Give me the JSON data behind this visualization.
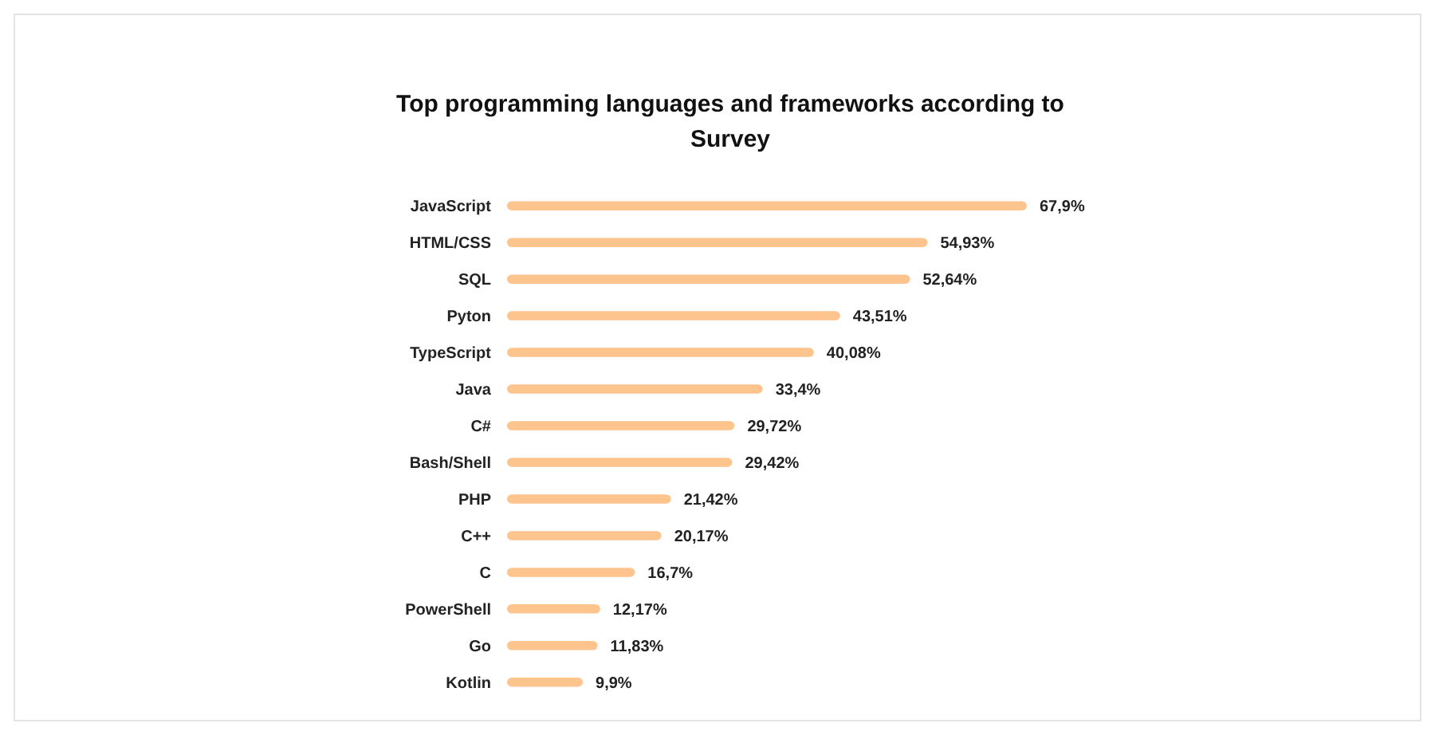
{
  "chart_data": {
    "type": "bar",
    "orientation": "horizontal",
    "title": "Top programming languages and frameworks according to Survey",
    "categories": [
      "JavaScript",
      "HTML/CSS",
      "SQL",
      "Pyton",
      "TypeScript",
      "Java",
      "C#",
      "Bash/Shell",
      "PHP",
      "C++",
      "C",
      "PowerShell",
      "Go",
      "Kotlin"
    ],
    "values": [
      67.9,
      54.93,
      52.64,
      43.51,
      40.08,
      33.4,
      29.72,
      29.42,
      21.42,
      20.17,
      16.7,
      12.17,
      11.83,
      9.9
    ],
    "value_labels": [
      "67,9%",
      "54,93%",
      "52,64%",
      "43,51%",
      "40,08%",
      "33,4%",
      "29,72%",
      "29,42%",
      "21,42%",
      "20,17%",
      "16,7%",
      "12,17%",
      "11,83%",
      "9,9%"
    ],
    "color": "#fdc48e",
    "tick_labels": "y"
  }
}
